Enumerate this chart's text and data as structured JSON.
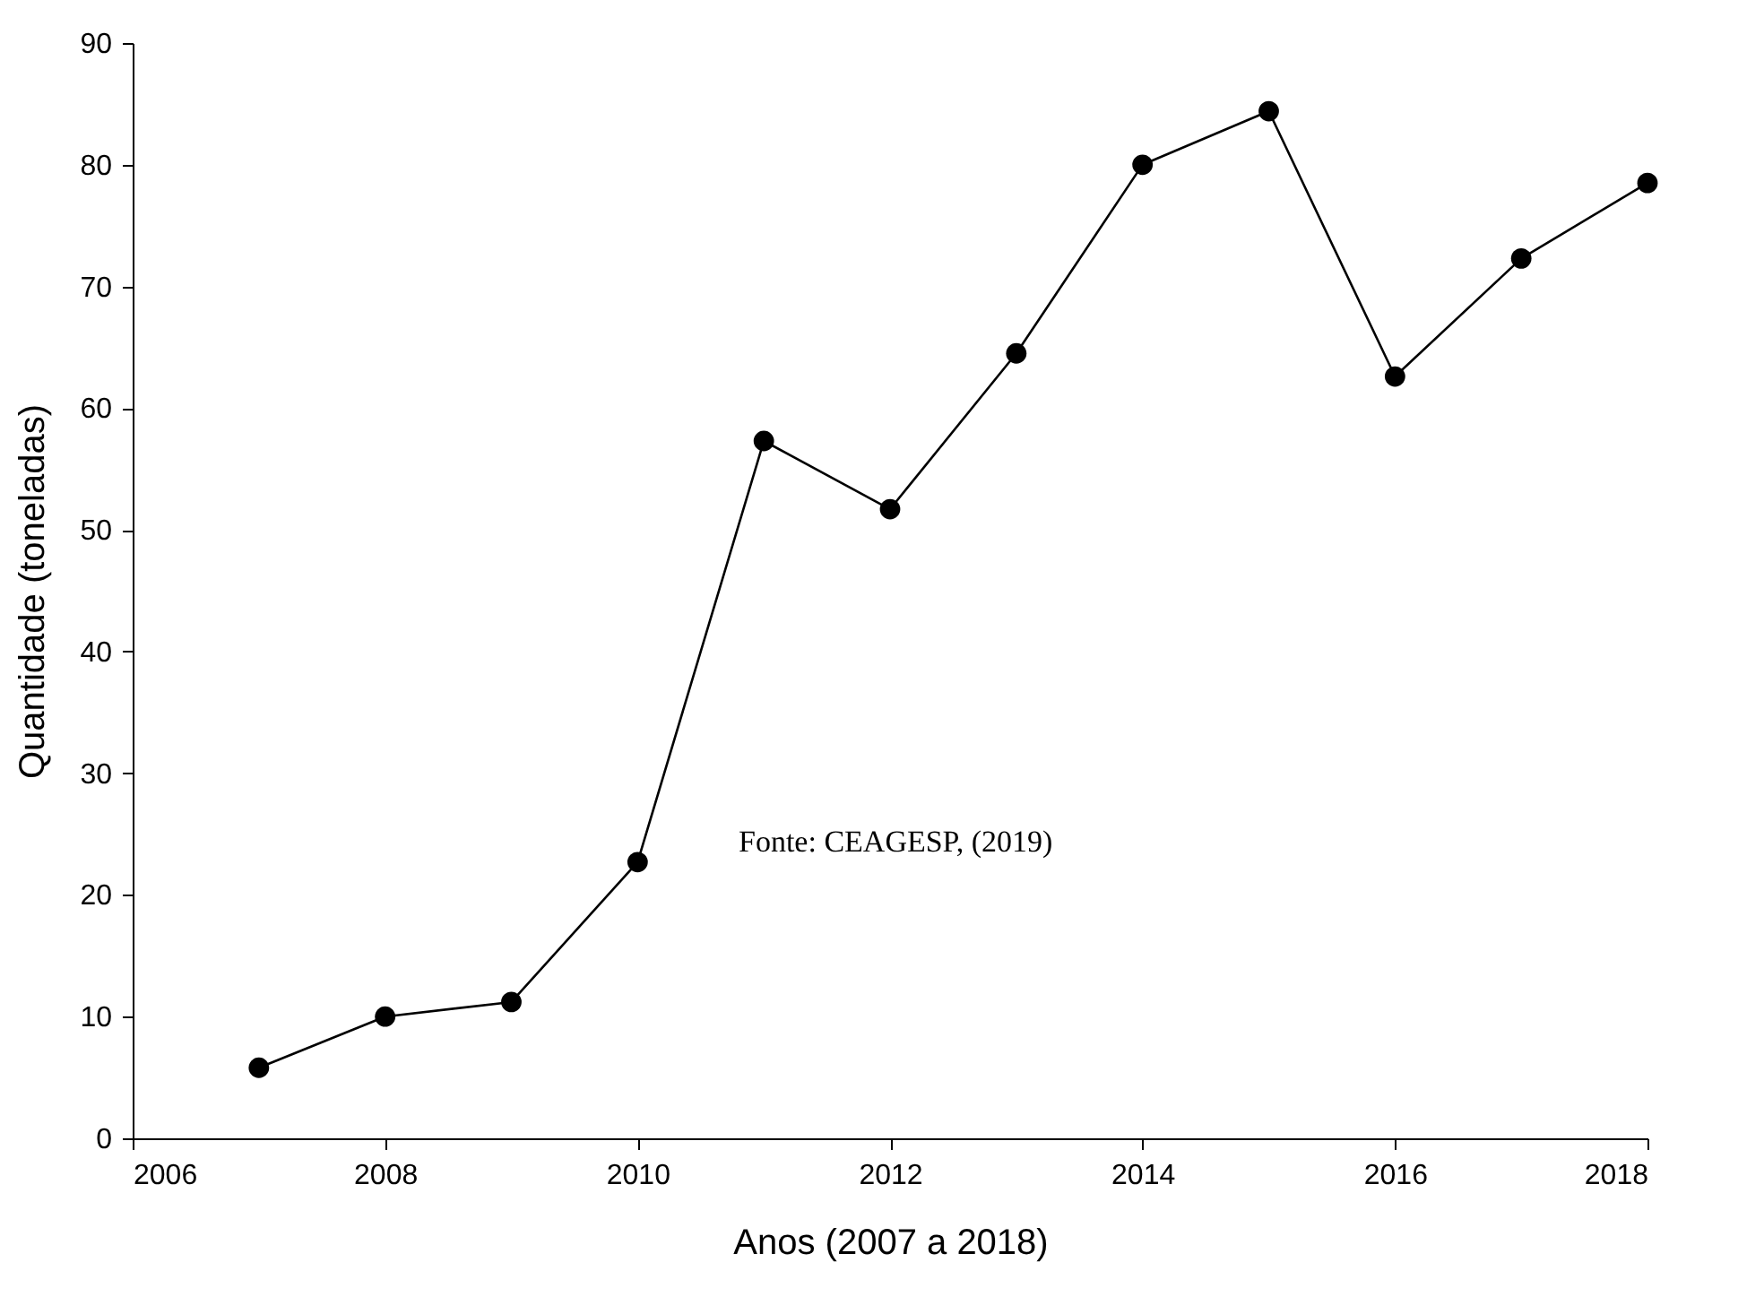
{
  "chart_data": {
    "type": "line",
    "xlabel": "Anos (2007 a 2018)",
    "ylabel": "Quantidade (toneladas)",
    "x": [
      2007,
      2008,
      2009,
      2010,
      2011,
      2012,
      2013,
      2014,
      2015,
      2016,
      2017,
      2018
    ],
    "series": [
      {
        "color": "#000000",
        "values": [
          5.8,
          10.0,
          11.2,
          22.7,
          57.3,
          51.7,
          64.5,
          80.0,
          84.4,
          62.6,
          72.3,
          78.5
        ]
      }
    ],
    "xlim": [
      2006,
      2018
    ],
    "xticks": [
      2006,
      2008,
      2010,
      2012,
      2014,
      2016,
      2018
    ],
    "ylim": [
      0,
      90
    ],
    "yticks": [
      0,
      10,
      20,
      30,
      40,
      50,
      60,
      70,
      80,
      90
    ],
    "marker": "circle",
    "line_style": "solid",
    "grid": false,
    "legend": false,
    "annotations": [
      "Fonte: CEAGESP, (2019)"
    ]
  }
}
